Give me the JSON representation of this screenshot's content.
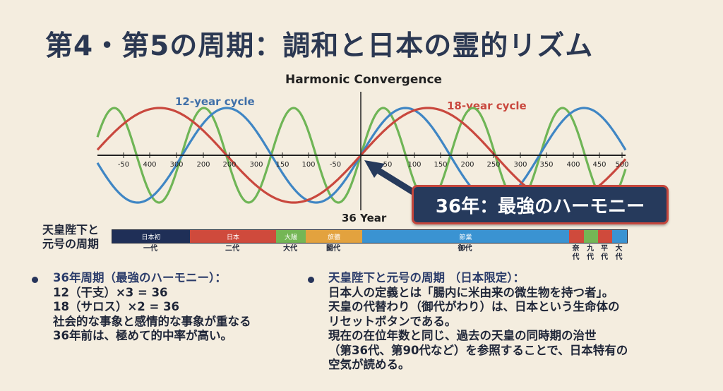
{
  "title": "第4・第5の周期：調和と日本の霊的リズム",
  "chart_data": {
    "type": "line",
    "title": "Harmonic Convergence",
    "x_tick_labels": [
      "-50",
      "400",
      "300",
      "200",
      "200",
      "300",
      "150",
      "100",
      "-50",
      "50",
      "100",
      "150",
      "200",
      "250",
      "300",
      "350",
      "400",
      "450",
      "500"
    ],
    "marker_label": "36 Year",
    "series": [
      {
        "name": "12-year cycle",
        "color": "#3f86c4"
      },
      {
        "name": "18-year cycle",
        "color": "#c9483e"
      },
      {
        "color": "#6fb556"
      }
    ],
    "grid": false
  },
  "callout": {
    "text": "36年：最強のハーモニー",
    "fill": "#263a5c",
    "border": "#c4463c"
  },
  "timeline": {
    "heading_line1": "天皇陛下と",
    "heading_line2": "元号の周期",
    "segments": [
      {
        "label": "日本初",
        "color": "#1f2f57",
        "era": "一代"
      },
      {
        "label": "日本",
        "color": "#cf4a3c",
        "era": "二代"
      },
      {
        "label": "大陽",
        "color": "#74b655",
        "era": "大代"
      },
      {
        "label": "旅體",
        "color": "#e3a23e",
        "era": "闘代"
      },
      {
        "label": "節業",
        "color": "#3a93d2",
        "era": "御代"
      },
      {
        "label": "",
        "color": "#cf4a3c",
        "era": "奈代"
      },
      {
        "label": "",
        "color": "#74b655",
        "era": "九代"
      },
      {
        "label": "",
        "color": "#cf4a3c",
        "era": "平代"
      },
      {
        "label": "",
        "color": "#3a93d2",
        "era": "大代"
      }
    ]
  },
  "left_bullet": {
    "heading": "36年周期（最強のハーモニー）：",
    "lines": [
      "12（干支）×3 = 36",
      "18（サロス）×2 = 36",
      "社会的な事象と感情的な事象が重なる",
      "36年前は、極めて的中率が高い。"
    ]
  },
  "right_bullet": {
    "heading": "天皇陛下と元号の周期 （日本限定）：",
    "lines": [
      "日本人の定義とは「腸内に米由来の微生物を持つ者」。",
      "天皇の代替わり（御代がわり）は、日本という生命体の",
      "リセットボタンである。",
      "現在の在位年数と同じ、過去の天皇の同時期の治世",
      "（第36代、第90代など）を参照することで、日本特有の",
      "空気が読める。"
    ]
  }
}
